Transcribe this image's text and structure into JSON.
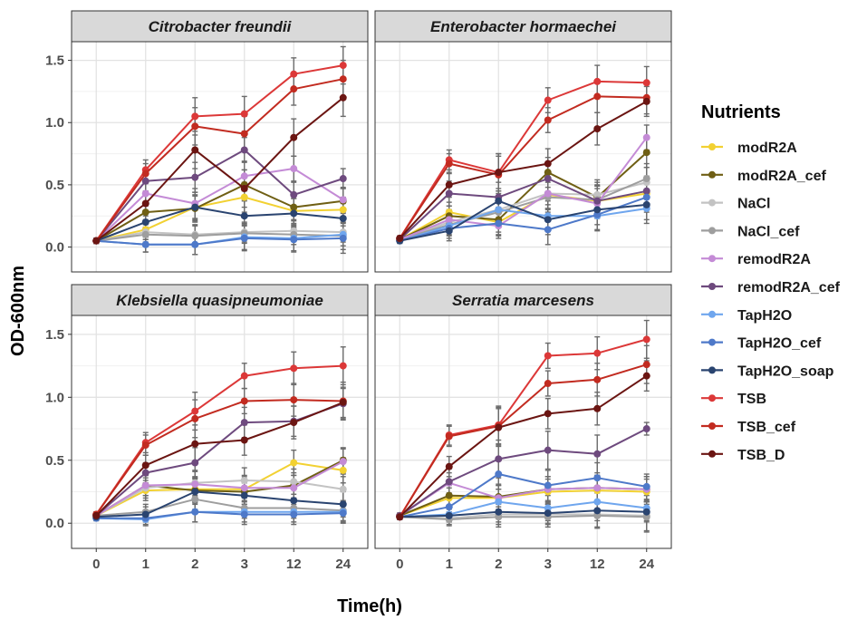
{
  "chart_data": {
    "type": "line",
    "x_label": "Time(h)",
    "y_label": "OD-600nm",
    "categories": [
      "0",
      "1",
      "2",
      "3",
      "12",
      "24"
    ],
    "ylim": [
      -0.2,
      1.65
    ],
    "y_ticks": [
      0.0,
      0.5,
      1.0,
      1.5
    ],
    "y_tick_labels": [
      "0.0",
      "0.5",
      "1.0",
      "1.5"
    ],
    "grid": true,
    "legend": {
      "title": "Nutrients",
      "placement": "right",
      "items": [
        {
          "name": "modR2A",
          "color": "#F2D132"
        },
        {
          "name": "modR2A_cef",
          "color": "#6F5F14"
        },
        {
          "name": "NaCl",
          "color": "#C3C3C3"
        },
        {
          "name": "NaCl_cef",
          "color": "#9E9E9E"
        },
        {
          "name": "remodR2A",
          "color": "#C48BD6"
        },
        {
          "name": "remodR2A_cef",
          "color": "#6E4A7E"
        },
        {
          "name": "TapH2O",
          "color": "#6FA6EE"
        },
        {
          "name": "TapH2O_cef",
          "color": "#4E79C9"
        },
        {
          "name": "TapH2O_soap",
          "color": "#2A4470"
        },
        {
          "name": "TSB",
          "color": "#DC3838"
        },
        {
          "name": "TSB_cef",
          "color": "#C22B20"
        },
        {
          "name": "TSB_D",
          "color": "#6B1512"
        }
      ]
    },
    "panels": [
      {
        "title": "Citrobacter freundii",
        "series": [
          {
            "name": "modR2A",
            "values": [
              0.05,
              0.14,
              0.32,
              0.4,
              0.29,
              0.3
            ],
            "error": [
              0.02,
              0.08,
              0.1,
              0.12,
              0.1,
              0.1
            ]
          },
          {
            "name": "modR2A_cef",
            "values": [
              0.05,
              0.28,
              0.31,
              0.5,
              0.32,
              0.37
            ],
            "error": [
              0.02,
              0.08,
              0.1,
              0.12,
              0.1,
              0.1
            ]
          },
          {
            "name": "NaCl",
            "values": [
              0.05,
              0.12,
              0.1,
              0.12,
              0.13,
              0.12
            ],
            "error": [
              0.02,
              0.06,
              0.08,
              0.08,
              0.08,
              0.08
            ]
          },
          {
            "name": "NaCl_cef",
            "values": [
              0.05,
              0.1,
              0.09,
              0.11,
              0.1,
              0.09
            ],
            "error": [
              0.02,
              0.06,
              0.08,
              0.08,
              0.08,
              0.08
            ]
          },
          {
            "name": "remodR2A",
            "values": [
              0.05,
              0.43,
              0.35,
              0.57,
              0.63,
              0.38
            ],
            "error": [
              0.02,
              0.1,
              0.12,
              0.12,
              0.1,
              0.1
            ]
          },
          {
            "name": "remodR2A_cef",
            "values": [
              0.05,
              0.53,
              0.56,
              0.78,
              0.42,
              0.55
            ],
            "error": [
              0.02,
              0.1,
              0.12,
              0.1,
              0.1,
              0.08
            ]
          },
          {
            "name": "TapH2O",
            "values": [
              0.05,
              0.02,
              0.02,
              0.08,
              0.07,
              0.1
            ],
            "error": [
              0.02,
              0.06,
              0.08,
              0.1,
              0.1,
              0.12
            ]
          },
          {
            "name": "TapH2O_cef",
            "values": [
              0.05,
              0.02,
              0.02,
              0.07,
              0.06,
              0.07
            ],
            "error": [
              0.02,
              0.06,
              0.08,
              0.1,
              0.1,
              0.12
            ]
          },
          {
            "name": "TapH2O_soap",
            "values": [
              0.05,
              0.2,
              0.32,
              0.25,
              0.27,
              0.23
            ],
            "error": [
              0.02,
              0.08,
              0.12,
              0.12,
              0.12,
              0.12
            ]
          },
          {
            "name": "TSB",
            "values": [
              0.05,
              0.62,
              1.05,
              1.07,
              1.39,
              1.46
            ],
            "error": [
              0.02,
              0.08,
              0.15,
              0.14,
              0.13,
              0.15
            ]
          },
          {
            "name": "TSB_cef",
            "values": [
              0.05,
              0.59,
              0.97,
              0.91,
              1.27,
              1.35
            ],
            "error": [
              0.02,
              0.08,
              0.15,
              0.14,
              0.13,
              0.15
            ]
          },
          {
            "name": "TSB_D",
            "values": [
              0.05,
              0.35,
              0.78,
              0.47,
              0.88,
              1.2
            ],
            "error": [
              0.02,
              0.1,
              0.15,
              0.15,
              0.15,
              0.15
            ]
          }
        ]
      },
      {
        "title": "Enterobacter hormaechei",
        "series": [
          {
            "name": "modR2A",
            "values": [
              0.06,
              0.28,
              0.2,
              0.42,
              0.37,
              0.43
            ],
            "error": [
              0.02,
              0.08,
              0.1,
              0.12,
              0.12,
              0.12
            ]
          },
          {
            "name": "modR2A_cef",
            "values": [
              0.06,
              0.25,
              0.22,
              0.6,
              0.4,
              0.76
            ],
            "error": [
              0.02,
              0.08,
              0.1,
              0.12,
              0.12,
              0.12
            ]
          },
          {
            "name": "NaCl",
            "values": [
              0.06,
              0.2,
              0.3,
              0.43,
              0.42,
              0.52
            ],
            "error": [
              0.02,
              0.08,
              0.1,
              0.12,
              0.12,
              0.12
            ]
          },
          {
            "name": "NaCl_cef",
            "values": [
              0.06,
              0.18,
              0.28,
              0.4,
              0.38,
              0.55
            ],
            "error": [
              0.02,
              0.08,
              0.1,
              0.12,
              0.12,
              0.12
            ]
          },
          {
            "name": "remodR2A",
            "values": [
              0.06,
              0.22,
              0.17,
              0.43,
              0.35,
              0.88
            ],
            "error": [
              0.02,
              0.08,
              0.1,
              0.12,
              0.12,
              0.1
            ]
          },
          {
            "name": "remodR2A_cef",
            "values": [
              0.06,
              0.43,
              0.4,
              0.55,
              0.37,
              0.45
            ],
            "error": [
              0.02,
              0.1,
              0.12,
              0.12,
              0.12,
              0.12
            ]
          },
          {
            "name": "TapH2O",
            "values": [
              0.05,
              0.17,
              0.3,
              0.25,
              0.25,
              0.31
            ],
            "error": [
              0.02,
              0.08,
              0.1,
              0.12,
              0.12,
              0.12
            ]
          },
          {
            "name": "TapH2O_cef",
            "values": [
              0.05,
              0.15,
              0.19,
              0.14,
              0.26,
              0.4
            ],
            "error": [
              0.02,
              0.08,
              0.1,
              0.12,
              0.12,
              0.12
            ]
          },
          {
            "name": "TapH2O_soap",
            "values": [
              0.05,
              0.13,
              0.37,
              0.22,
              0.3,
              0.34
            ],
            "error": [
              0.02,
              0.08,
              0.1,
              0.12,
              0.12,
              0.12
            ]
          },
          {
            "name": "TSB",
            "values": [
              0.07,
              0.7,
              0.6,
              1.18,
              1.33,
              1.32
            ],
            "error": [
              0.02,
              0.08,
              0.15,
              0.1,
              0.13,
              0.13
            ]
          },
          {
            "name": "TSB_cef",
            "values": [
              0.07,
              0.67,
              0.58,
              1.02,
              1.21,
              1.2
            ],
            "error": [
              0.02,
              0.08,
              0.15,
              0.1,
              0.13,
              0.13
            ]
          },
          {
            "name": "TSB_D",
            "values": [
              0.07,
              0.5,
              0.6,
              0.67,
              0.95,
              1.17
            ],
            "error": [
              0.02,
              0.1,
              0.15,
              0.12,
              0.13,
              0.12
            ]
          }
        ]
      },
      {
        "title": "Klebsiella quasipneumoniae",
        "series": [
          {
            "name": "modR2A",
            "values": [
              0.06,
              0.26,
              0.27,
              0.27,
              0.48,
              0.42
            ],
            "error": [
              0.02,
              0.08,
              0.1,
              0.1,
              0.1,
              0.1
            ]
          },
          {
            "name": "modR2A_cef",
            "values": [
              0.06,
              0.3,
              0.26,
              0.25,
              0.3,
              0.5
            ],
            "error": [
              0.02,
              0.08,
              0.1,
              0.1,
              0.1,
              0.1
            ]
          },
          {
            "name": "NaCl",
            "values": [
              0.06,
              0.28,
              0.32,
              0.34,
              0.33,
              0.27
            ],
            "error": [
              0.02,
              0.08,
              0.1,
              0.1,
              0.1,
              0.1
            ]
          },
          {
            "name": "NaCl_cef",
            "values": [
              0.06,
              0.09,
              0.19,
              0.12,
              0.12,
              0.1
            ],
            "error": [
              0.02,
              0.06,
              0.08,
              0.08,
              0.08,
              0.08
            ]
          },
          {
            "name": "remodR2A",
            "values": [
              0.06,
              0.3,
              0.31,
              0.28,
              0.28,
              0.49
            ],
            "error": [
              0.02,
              0.08,
              0.1,
              0.1,
              0.1,
              0.1
            ]
          },
          {
            "name": "remodR2A_cef",
            "values": [
              0.06,
              0.4,
              0.48,
              0.8,
              0.81,
              0.95
            ],
            "error": [
              0.02,
              0.08,
              0.12,
              0.12,
              0.12,
              0.12
            ]
          },
          {
            "name": "TapH2O",
            "values": [
              0.04,
              0.03,
              0.09,
              0.09,
              0.09,
              0.09
            ],
            "error": [
              0.02,
              0.05,
              0.08,
              0.08,
              0.08,
              0.08
            ]
          },
          {
            "name": "TapH2O_cef",
            "values": [
              0.04,
              0.04,
              0.09,
              0.07,
              0.07,
              0.08
            ],
            "error": [
              0.02,
              0.05,
              0.08,
              0.08,
              0.08,
              0.08
            ]
          },
          {
            "name": "TapH2O_soap",
            "values": [
              0.05,
              0.07,
              0.25,
              0.22,
              0.18,
              0.15
            ],
            "error": [
              0.02,
              0.06,
              0.1,
              0.1,
              0.1,
              0.1
            ]
          },
          {
            "name": "TSB",
            "values": [
              0.07,
              0.64,
              0.89,
              1.17,
              1.23,
              1.25
            ],
            "error": [
              0.02,
              0.08,
              0.15,
              0.1,
              0.13,
              0.15
            ]
          },
          {
            "name": "TSB_cef",
            "values": [
              0.07,
              0.62,
              0.83,
              0.97,
              0.98,
              0.97
            ],
            "error": [
              0.02,
              0.08,
              0.15,
              0.1,
              0.13,
              0.15
            ]
          },
          {
            "name": "TSB_D",
            "values": [
              0.06,
              0.46,
              0.63,
              0.66,
              0.8,
              0.96
            ],
            "error": [
              0.02,
              0.08,
              0.15,
              0.12,
              0.13,
              0.12
            ]
          }
        ]
      },
      {
        "title": "Serratia marcesens",
        "series": [
          {
            "name": "modR2A",
            "values": [
              0.06,
              0.2,
              0.2,
              0.25,
              0.26,
              0.25
            ],
            "error": [
              0.02,
              0.08,
              0.1,
              0.1,
              0.1,
              0.1
            ]
          },
          {
            "name": "modR2A_cef",
            "values": [
              0.06,
              0.22,
              0.21,
              0.27,
              0.28,
              0.27
            ],
            "error": [
              0.02,
              0.08,
              0.1,
              0.1,
              0.1,
              0.1
            ]
          },
          {
            "name": "NaCl",
            "values": [
              0.05,
              0.04,
              0.07,
              0.07,
              0.07,
              0.06
            ],
            "error": [
              0.02,
              0.05,
              0.08,
              0.08,
              0.1,
              0.12
            ]
          },
          {
            "name": "NaCl_cef",
            "values": [
              0.05,
              0.03,
              0.05,
              0.05,
              0.06,
              0.05
            ],
            "error": [
              0.02,
              0.05,
              0.08,
              0.08,
              0.1,
              0.12
            ]
          },
          {
            "name": "remodR2A",
            "values": [
              0.06,
              0.32,
              0.2,
              0.27,
              0.28,
              0.27
            ],
            "error": [
              0.02,
              0.08,
              0.1,
              0.1,
              0.1,
              0.1
            ]
          },
          {
            "name": "remodR2A_cef",
            "values": [
              0.06,
              0.33,
              0.51,
              0.58,
              0.55,
              0.75
            ],
            "error": [
              0.02,
              0.1,
              0.15,
              0.15,
              0.15,
              0.05
            ]
          },
          {
            "name": "TapH2O",
            "values": [
              0.05,
              0.07,
              0.17,
              0.12,
              0.17,
              0.12
            ],
            "error": [
              0.02,
              0.06,
              0.1,
              0.1,
              0.1,
              0.1
            ]
          },
          {
            "name": "TapH2O_cef",
            "values": [
              0.05,
              0.13,
              0.39,
              0.3,
              0.36,
              0.29
            ],
            "error": [
              0.02,
              0.08,
              0.12,
              0.12,
              0.12,
              0.1
            ]
          },
          {
            "name": "TapH2O_soap",
            "values": [
              0.05,
              0.06,
              0.09,
              0.08,
              0.1,
              0.09
            ],
            "error": [
              0.02,
              0.05,
              0.08,
              0.08,
              0.08,
              0.08
            ]
          },
          {
            "name": "TSB",
            "values": [
              0.05,
              0.7,
              0.78,
              1.33,
              1.35,
              1.46
            ],
            "error": [
              0.02,
              0.08,
              0.15,
              0.1,
              0.13,
              0.15
            ]
          },
          {
            "name": "TSB_cef",
            "values": [
              0.05,
              0.69,
              0.77,
              1.11,
              1.14,
              1.26
            ],
            "error": [
              0.02,
              0.08,
              0.15,
              0.1,
              0.13,
              0.15
            ]
          },
          {
            "name": "TSB_D",
            "values": [
              0.05,
              0.45,
              0.76,
              0.87,
              0.91,
              1.17
            ],
            "error": [
              0.02,
              0.08,
              0.15,
              0.12,
              0.13,
              0.12
            ]
          }
        ]
      }
    ]
  }
}
